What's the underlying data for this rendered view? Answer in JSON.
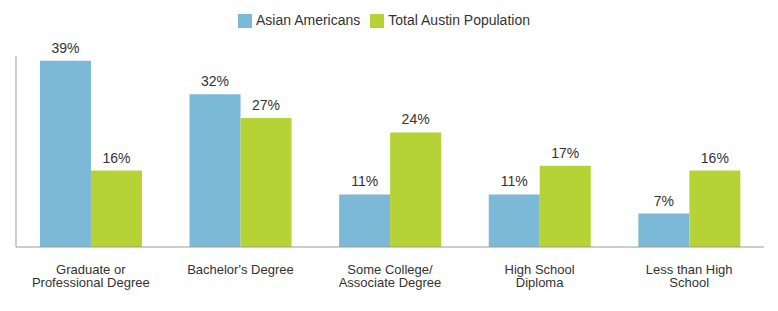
{
  "chart_data": {
    "type": "bar",
    "categories": [
      "Graduate or Professional Degree",
      "Bachelor's Degree",
      "Some College/ Associate Degree",
      "High School Diploma",
      "Less than High School"
    ],
    "series": [
      {
        "name": "Asian Americans",
        "color": "#7bb9d6",
        "values": [
          39,
          32,
          11,
          11,
          7
        ],
        "value_labels": [
          "39%",
          "32%",
          "11%",
          "11%",
          "7%"
        ]
      },
      {
        "name": "Total Austin Population",
        "color": "#b5d334",
        "values": [
          16,
          27,
          24,
          17,
          16
        ],
        "value_labels": [
          "16%",
          "27%",
          "24%",
          "17%",
          "16%"
        ]
      }
    ],
    "ylim": [
      0,
      40
    ],
    "legend": "top",
    "data_labels": true,
    "tick_labels": "x",
    "grid": false
  }
}
